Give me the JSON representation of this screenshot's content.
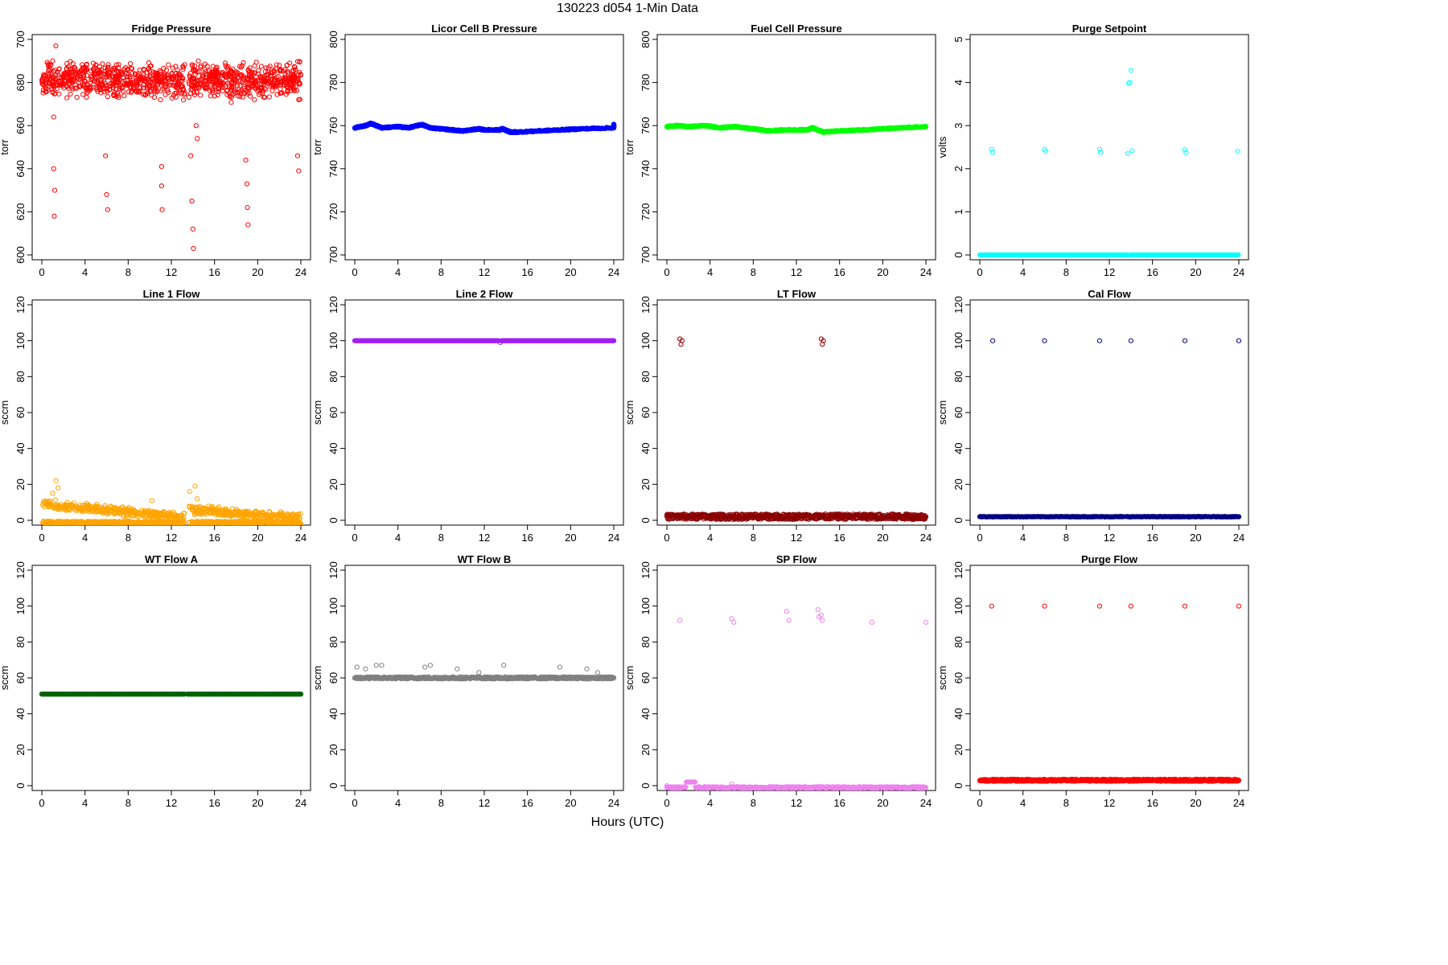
{
  "title": "130223    d054    1-Min Data",
  "xlabel": "Hours (UTC)",
  "chart_data": [
    {
      "type": "scatter",
      "title": "Fridge Pressure",
      "ylabel": "torr",
      "xlim": [
        0,
        24
      ],
      "ylim": [
        600,
        700
      ],
      "xticks": [
        0,
        4,
        8,
        12,
        16,
        20,
        24
      ],
      "yticks": [
        600,
        620,
        640,
        660,
        680,
        700
      ],
      "color": "#ff0000",
      "marker": "open-circle",
      "series": [
        {
          "points": [
            [
              0.3,
              680
            ],
            [
              1.0,
              690
            ],
            [
              1.3,
              697
            ],
            [
              2.5,
              685
            ],
            [
              3.5,
              678
            ],
            [
              5.0,
              688
            ],
            [
              7.0,
              675
            ],
            [
              9.0,
              684
            ],
            [
              11.0,
              672
            ],
            [
              12.5,
              682
            ],
            [
              14.5,
              690
            ],
            [
              16.0,
              678
            ],
            [
              18.0,
              685
            ],
            [
              20.0,
              676
            ],
            [
              22.0,
              688
            ],
            [
              23.8,
              672
            ],
            [
              1.1,
              664
            ],
            [
              1.1,
              640
            ],
            [
              1.2,
              630
            ],
            [
              1.15,
              618
            ],
            [
              5.9,
              646
            ],
            [
              6.0,
              628
            ],
            [
              6.1,
              621
            ],
            [
              11.1,
              641
            ],
            [
              11.1,
              632
            ],
            [
              11.15,
              621
            ],
            [
              13.8,
              646
            ],
            [
              13.9,
              625
            ],
            [
              14.0,
              612
            ],
            [
              14.05,
              603
            ],
            [
              14.3,
              660
            ],
            [
              14.4,
              654
            ],
            [
              18.9,
              644
            ],
            [
              19.0,
              633
            ],
            [
              19.05,
              622
            ],
            [
              19.1,
              614
            ],
            [
              23.7,
              646
            ],
            [
              23.8,
              639
            ]
          ]
        }
      ]
    },
    {
      "type": "scatter",
      "title": "Licor Cell B Pressure",
      "ylabel": "torr",
      "xlim": [
        0,
        24
      ],
      "ylim": [
        700,
        800
      ],
      "xticks": [
        0,
        4,
        8,
        12,
        16,
        20,
        24
      ],
      "yticks": [
        700,
        720,
        740,
        760,
        780,
        800
      ],
      "color": "#0000ff",
      "marker": "open-circle",
      "series": [
        {
          "points": [
            [
              0,
              759
            ],
            [
              1,
              760
            ],
            [
              1.5,
              761
            ],
            [
              2.5,
              759
            ],
            [
              4,
              759.5
            ],
            [
              5,
              759
            ],
            [
              6.2,
              760.5
            ],
            [
              7,
              759
            ],
            [
              9,
              758
            ],
            [
              10,
              757.5
            ],
            [
              11.5,
              758.5
            ],
            [
              12,
              758
            ],
            [
              13.4,
              758
            ],
            [
              13.7,
              758.5
            ],
            [
              14.4,
              757
            ],
            [
              15,
              757
            ],
            [
              17,
              757.5
            ],
            [
              19,
              758
            ],
            [
              21,
              758.5
            ],
            [
              24,
              759
            ],
            [
              24,
              760.5
            ]
          ]
        }
      ]
    },
    {
      "type": "scatter",
      "title": "Fuel Cell Pressure",
      "ylabel": "torr",
      "xlim": [
        0,
        24
      ],
      "ylim": [
        700,
        800
      ],
      "xticks": [
        0,
        4,
        8,
        12,
        16,
        20,
        24
      ],
      "yticks": [
        700,
        720,
        740,
        760,
        780,
        800
      ],
      "color": "#00ff00",
      "marker": "open-circle",
      "series": [
        {
          "points": [
            [
              0,
              759.5
            ],
            [
              1,
              760
            ],
            [
              2,
              759.5
            ],
            [
              3.5,
              760
            ],
            [
              5,
              759
            ],
            [
              6.2,
              759.5
            ],
            [
              8,
              758.5
            ],
            [
              9.5,
              757.5
            ],
            [
              11,
              758
            ],
            [
              13,
              758
            ],
            [
              13.5,
              759
            ],
            [
              14.5,
              757
            ],
            [
              16,
              757.5
            ],
            [
              18,
              758
            ],
            [
              20,
              758.5
            ],
            [
              22,
              759
            ],
            [
              24,
              759.5
            ]
          ]
        }
      ]
    },
    {
      "type": "scatter",
      "title": "Purge Setpoint",
      "ylabel": "volts",
      "xlim": [
        0,
        24
      ],
      "ylim": [
        0,
        5
      ],
      "xticks": [
        0,
        4,
        8,
        12,
        16,
        20,
        24
      ],
      "yticks": [
        0,
        1,
        2,
        3,
        4,
        5
      ],
      "color": "#00ffff",
      "marker": "open-circle",
      "baseline": 0,
      "series": [
        {
          "points": [
            [
              1.1,
              2.45
            ],
            [
              1.2,
              2.38
            ],
            [
              6.0,
              2.45
            ],
            [
              6.1,
              2.4
            ],
            [
              11.1,
              2.45
            ],
            [
              11.2,
              2.38
            ],
            [
              13.7,
              2.35
            ],
            [
              13.8,
              3.98
            ],
            [
              13.9,
              4.0
            ],
            [
              14.0,
              4.28
            ],
            [
              14.1,
              2.42
            ],
            [
              19.0,
              2.44
            ],
            [
              19.1,
              2.38
            ],
            [
              23.9,
              2.4
            ]
          ]
        }
      ]
    },
    {
      "type": "scatter",
      "title": "Line 1 Flow",
      "ylabel": "sccm",
      "xlim": [
        0,
        24
      ],
      "ylim": [
        0,
        120
      ],
      "xticks": [
        0,
        4,
        8,
        12,
        16,
        20,
        24
      ],
      "yticks": [
        0,
        20,
        40,
        60,
        80,
        100,
        120
      ],
      "color": "#ffa500",
      "marker": "open-circle",
      "series": [
        {
          "points": [
            [
              0.5,
              10
            ],
            [
              1.0,
              15
            ],
            [
              1.3,
              22
            ],
            [
              1.5,
              18
            ],
            [
              2.5,
              8
            ],
            [
              4,
              7
            ],
            [
              6,
              6
            ],
            [
              8,
              5
            ],
            [
              10.2,
              11
            ],
            [
              12,
              4
            ],
            [
              13.2,
              4
            ],
            [
              13.7,
              16
            ],
            [
              14.2,
              19
            ],
            [
              14.4,
              12
            ],
            [
              15,
              5
            ],
            [
              18,
              3
            ],
            [
              21,
              3
            ],
            [
              23.5,
              3
            ],
            [
              24,
              -2
            ]
          ]
        }
      ]
    },
    {
      "type": "scatter",
      "title": "Line 2 Flow",
      "ylabel": "sccm",
      "xlim": [
        0,
        24
      ],
      "ylim": [
        0,
        120
      ],
      "xticks": [
        0,
        4,
        8,
        12,
        16,
        20,
        24
      ],
      "yticks": [
        0,
        20,
        40,
        60,
        80,
        100,
        120
      ],
      "color": "#a020f0",
      "marker": "open-circle",
      "series": [
        {
          "points": [
            [
              0,
              100
            ],
            [
              13.3,
              100
            ],
            [
              13.5,
              99
            ],
            [
              24,
              100
            ]
          ]
        }
      ]
    },
    {
      "type": "scatter",
      "title": "LT Flow",
      "ylabel": "sccm",
      "xlim": [
        0,
        24
      ],
      "ylim": [
        0,
        120
      ],
      "xticks": [
        0,
        4,
        8,
        12,
        16,
        20,
        24
      ],
      "yticks": [
        0,
        20,
        40,
        60,
        80,
        100,
        120
      ],
      "color": "#8b0000",
      "marker": "open-circle",
      "series": [
        {
          "points": [
            [
              1.2,
              101
            ],
            [
              1.3,
              98
            ],
            [
              1.4,
              100
            ],
            [
              14.3,
              101
            ],
            [
              14.4,
              98
            ],
            [
              14.5,
              100
            ],
            [
              0,
              2
            ],
            [
              24,
              2
            ]
          ]
        }
      ]
    },
    {
      "type": "scatter",
      "title": "Cal Flow",
      "ylabel": "sccm",
      "xlim": [
        0,
        24
      ],
      "ylim": [
        0,
        120
      ],
      "xticks": [
        0,
        4,
        8,
        12,
        16,
        20,
        24
      ],
      "yticks": [
        0,
        20,
        40,
        60,
        80,
        100,
        120
      ],
      "color": "#000080",
      "marker": "open-circle",
      "series": [
        {
          "points": [
            [
              1.2,
              100
            ],
            [
              6.0,
              100
            ],
            [
              11.1,
              100
            ],
            [
              14.0,
              100
            ],
            [
              19.0,
              100
            ],
            [
              24.0,
              100
            ],
            [
              0,
              2
            ],
            [
              24,
              2
            ]
          ]
        }
      ]
    },
    {
      "type": "scatter",
      "title": "WT Flow A",
      "ylabel": "sccm",
      "xlim": [
        0,
        24
      ],
      "ylim": [
        0,
        120
      ],
      "xticks": [
        0,
        4,
        8,
        12,
        16,
        20,
        24
      ],
      "yticks": [
        0,
        20,
        40,
        60,
        80,
        100,
        120
      ],
      "color": "#006400",
      "marker": "open-circle",
      "series": [
        {
          "points": [
            [
              0,
              51
            ],
            [
              13.2,
              51
            ],
            [
              13.5,
              51
            ],
            [
              24,
              51
            ]
          ]
        }
      ]
    },
    {
      "type": "scatter",
      "title": "WT Flow B",
      "ylabel": "sccm",
      "xlim": [
        0,
        24
      ],
      "ylim": [
        0,
        120
      ],
      "xticks": [
        0,
        4,
        8,
        12,
        16,
        20,
        24
      ],
      "yticks": [
        0,
        20,
        40,
        60,
        80,
        100,
        120
      ],
      "color": "#808080",
      "marker": "open-circle",
      "series": [
        {
          "points": [
            [
              0.2,
              66
            ],
            [
              1.0,
              65
            ],
            [
              2.0,
              67
            ],
            [
              2.5,
              67
            ],
            [
              6.5,
              66
            ],
            [
              7.0,
              67
            ],
            [
              9.5,
              65
            ],
            [
              11.5,
              63
            ],
            [
              13.8,
              67
            ],
            [
              19.0,
              66
            ],
            [
              21.5,
              65
            ],
            [
              22.5,
              63
            ],
            [
              0,
              60
            ],
            [
              24,
              60
            ]
          ]
        }
      ]
    },
    {
      "type": "scatter",
      "title": "SP Flow",
      "ylabel": "sccm",
      "xlim": [
        0,
        24
      ],
      "ylim": [
        0,
        120
      ],
      "xticks": [
        0,
        4,
        8,
        12,
        16,
        20,
        24
      ],
      "yticks": [
        0,
        20,
        40,
        60,
        80,
        100,
        120
      ],
      "color": "#ee82ee",
      "marker": "open-circle",
      "series": [
        {
          "points": [
            [
              1.2,
              92
            ],
            [
              6.0,
              93
            ],
            [
              6.2,
              91
            ],
            [
              11.1,
              97
            ],
            [
              11.3,
              92
            ],
            [
              14.0,
              98
            ],
            [
              14.1,
              94
            ],
            [
              14.3,
              95
            ],
            [
              14.4,
              92
            ],
            [
              19.0,
              91
            ],
            [
              24.0,
              91
            ],
            [
              0,
              0
            ],
            [
              2.0,
              2
            ],
            [
              6.0,
              1
            ],
            [
              24,
              -1
            ]
          ]
        }
      ]
    },
    {
      "type": "scatter",
      "title": "Purge Flow",
      "ylabel": "sccm",
      "xlim": [
        0,
        24
      ],
      "ylim": [
        0,
        120
      ],
      "xticks": [
        0,
        4,
        8,
        12,
        16,
        20,
        24
      ],
      "yticks": [
        0,
        20,
        40,
        60,
        80,
        100,
        120
      ],
      "color": "#ff0000",
      "marker": "open-circle",
      "series": [
        {
          "points": [
            [
              1.1,
              100
            ],
            [
              6.0,
              100
            ],
            [
              11.1,
              100
            ],
            [
              14.0,
              100
            ],
            [
              19.0,
              100
            ],
            [
              24.0,
              100
            ],
            [
              0,
              3
            ],
            [
              24,
              3
            ]
          ]
        }
      ]
    }
  ]
}
